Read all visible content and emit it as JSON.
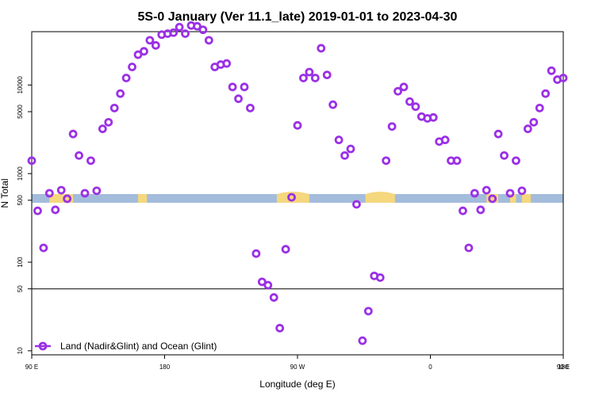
{
  "chart_data": {
    "type": "scatter",
    "title": "5S-0 January (Ver 11.1_late)   2019-01-01 to 2023-04-30",
    "xlabel": "Longitude (deg E)",
    "ylabel": "N Total",
    "y_scale": "log",
    "ylim": [
      9,
      40000
    ],
    "x_ticks": [
      "90 E",
      "180",
      "90 W",
      "0",
      "90 E",
      "180"
    ],
    "y_ticks": [
      "10",
      "50",
      "100",
      "500",
      "1000",
      "5000",
      "10000"
    ],
    "reference_line_y": 50,
    "grid": false,
    "background_strip": {
      "description_colors": {
        "ocean": "#a4bcdc",
        "land": "#f5d77e"
      }
    },
    "series": [
      {
        "name": "Land (Nadir&Glint) and Ocean (Glint)",
        "color": "#9b30e6",
        "marker": "open-circle",
        "x": [
          90,
          94,
          98,
          102,
          106,
          110,
          114,
          118,
          122,
          126,
          130,
          134,
          138,
          142,
          146,
          150,
          154,
          158,
          162,
          166,
          170,
          174,
          178,
          182,
          186,
          190,
          194,
          198,
          202,
          206,
          210,
          214,
          218,
          222,
          226,
          230,
          234,
          238,
          242,
          246,
          250,
          254,
          258,
          262,
          266,
          270,
          274,
          278,
          282,
          286,
          290,
          294,
          298,
          302,
          306,
          310,
          314,
          318,
          322,
          326,
          330,
          334,
          338,
          342,
          346,
          350,
          354,
          358,
          362,
          366,
          370,
          374,
          378,
          382,
          386,
          390,
          394,
          398,
          402,
          406,
          410,
          414,
          418,
          422,
          426,
          430,
          434,
          438,
          442,
          446,
          450
        ],
        "y": [
          1400,
          380,
          145,
          600,
          390,
          650,
          520,
          2800,
          1600,
          600,
          1400,
          640,
          3200,
          3800,
          5500,
          8000,
          12000,
          16000,
          22000,
          24000,
          32000,
          28000,
          37000,
          38000,
          39000,
          45000,
          38000,
          47000,
          46000,
          42000,
          32000,
          16000,
          17000,
          17500,
          9500,
          7000,
          9500,
          5500,
          125,
          60,
          55,
          40,
          18,
          140,
          540,
          3500,
          12000,
          14000,
          12000,
          26000,
          13000,
          6000,
          2400,
          1600,
          1900,
          450,
          13,
          28,
          70,
          67,
          1400,
          3400,
          8500,
          9500,
          6500,
          5700,
          4400,
          4200,
          4300,
          2300,
          2400,
          1400,
          1400,
          380,
          145,
          600,
          390,
          650,
          520,
          2800,
          1600,
          600,
          1400,
          640,
          3200,
          3800,
          5500,
          8000,
          14500,
          11500,
          12000
        ]
      }
    ]
  }
}
